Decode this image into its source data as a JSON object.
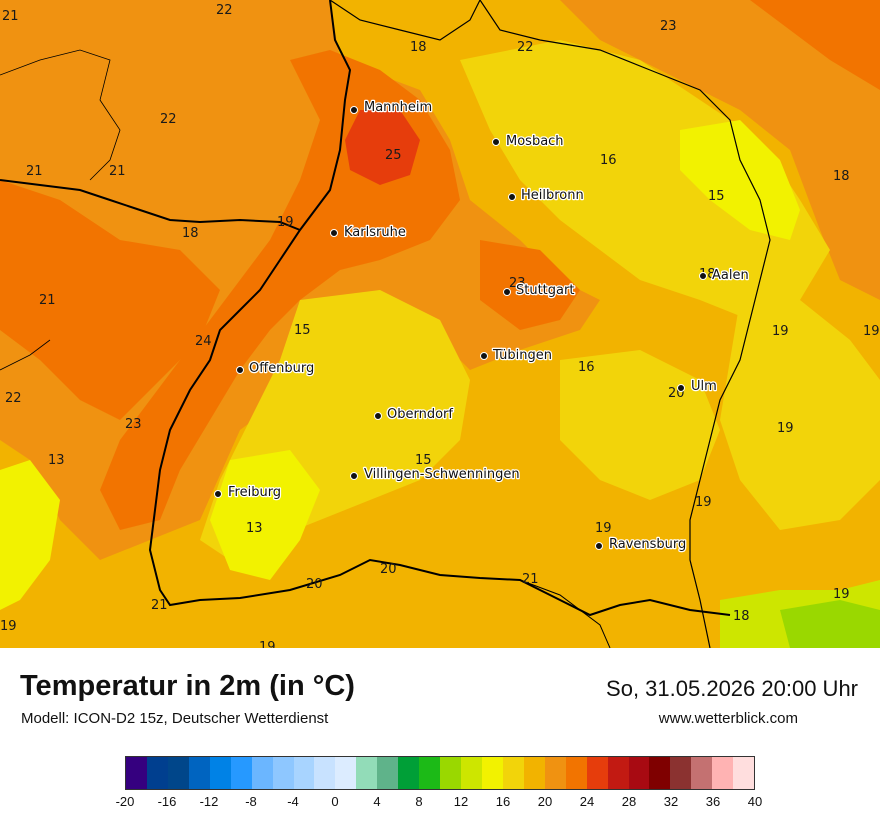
{
  "map": {
    "cities": [
      {
        "name": "Mannheim"
      },
      {
        "name": "Mosbach"
      },
      {
        "name": "Heilbronn"
      },
      {
        "name": "Karlsruhe"
      },
      {
        "name": "Stuttgart"
      },
      {
        "name": "Aalen"
      },
      {
        "name": "Tübingen"
      },
      {
        "name": "Offenburg"
      },
      {
        "name": "Ulm"
      },
      {
        "name": "Oberndorf"
      },
      {
        "name": "Villingen-Schwenningen"
      },
      {
        "name": "Freiburg"
      },
      {
        "name": "Ravensburg"
      }
    ],
    "temperature_labels": [
      "22",
      "21",
      "18",
      "22",
      "23",
      "22",
      "25",
      "16",
      "21",
      "21",
      "18",
      "19",
      "18",
      "15",
      "23",
      "18",
      "21",
      "15",
      "19",
      "24",
      "19",
      "16",
      "22",
      "20",
      "23",
      "19",
      "13",
      "15",
      "19",
      "13",
      "19",
      "20",
      "21",
      "20",
      "21",
      "18",
      "19",
      "19",
      "19"
    ]
  },
  "footer": {
    "title": "Temperatur in 2m (in °C)",
    "model": "Modell: ICON-D2 15z, Deutscher Wetterdienst",
    "datetime": "So, 31.05.2026 20:00 Uhr",
    "website": "www.wetterblick.com"
  },
  "legend": {
    "colors": [
      "#35007f",
      "#003f8f",
      "#00468a",
      "#0064c0",
      "#0082e6",
      "#2699ff",
      "#6bb6ff",
      "#8ec7ff",
      "#a8d4ff",
      "#c8e2ff",
      "#dcecff",
      "#92dcb8",
      "#5fb38a",
      "#009f37",
      "#1cba17",
      "#9ad800",
      "#cde600",
      "#f2f200",
      "#f2d40a",
      "#f2b300",
      "#f09211",
      "#f27400",
      "#e63d0c",
      "#c21a12",
      "#a80a12",
      "#7f0000",
      "#8b3230",
      "#c47171",
      "#ffb3b3",
      "#ffdede"
    ],
    "ticks": [
      "-20",
      "-16",
      "-12",
      "-8",
      "-4",
      "0",
      "4",
      "8",
      "12",
      "16",
      "20",
      "24",
      "28",
      "32",
      "36",
      "40"
    ]
  }
}
